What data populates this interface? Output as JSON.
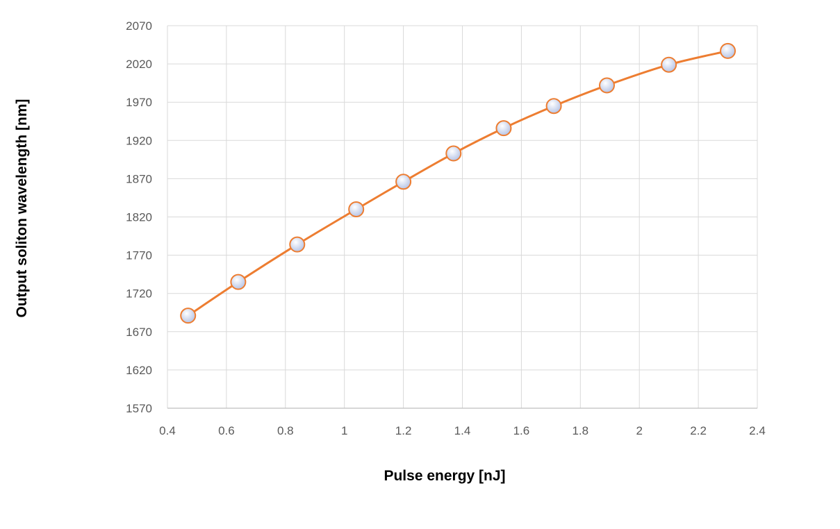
{
  "chart_data": {
    "type": "line",
    "title": "",
    "xlabel": "Pulse energy [nJ]",
    "ylabel": "Output soliton wavelength [nm]",
    "xlim": [
      0.4,
      2.4
    ],
    "ylim": [
      1570,
      2070
    ],
    "x_ticks": [
      0.4,
      0.6,
      0.8,
      1,
      1.2,
      1.4,
      1.6,
      1.8,
      2,
      2.2,
      2.4
    ],
    "x_tick_labels": [
      "0.4",
      "0.6",
      "0.8",
      "1",
      "1.2",
      "1.4",
      "1.6",
      "1.8",
      "2",
      "2.2",
      "2.4"
    ],
    "y_ticks": [
      1570,
      1620,
      1670,
      1720,
      1770,
      1820,
      1870,
      1920,
      1970,
      2020,
      2070
    ],
    "y_tick_labels": [
      "1570",
      "1620",
      "1670",
      "1720",
      "1770",
      "1820",
      "1870",
      "1920",
      "1970",
      "2020",
      "2070"
    ],
    "grid": true,
    "legend": "none",
    "series": [
      {
        "x": [
          0.47,
          0.64,
          0.84,
          1.04,
          1.2,
          1.37,
          1.54,
          1.71,
          1.89,
          2.1,
          2.3
        ],
        "y": [
          1691,
          1735,
          1784,
          1830,
          1866,
          1903,
          1936,
          1965,
          1992,
          2019,
          2037
        ],
        "line_color": "#ED7D31",
        "marker_fill": "#C9D4EE",
        "marker_edge": "#ED7D31",
        "smooth": true
      }
    ]
  }
}
